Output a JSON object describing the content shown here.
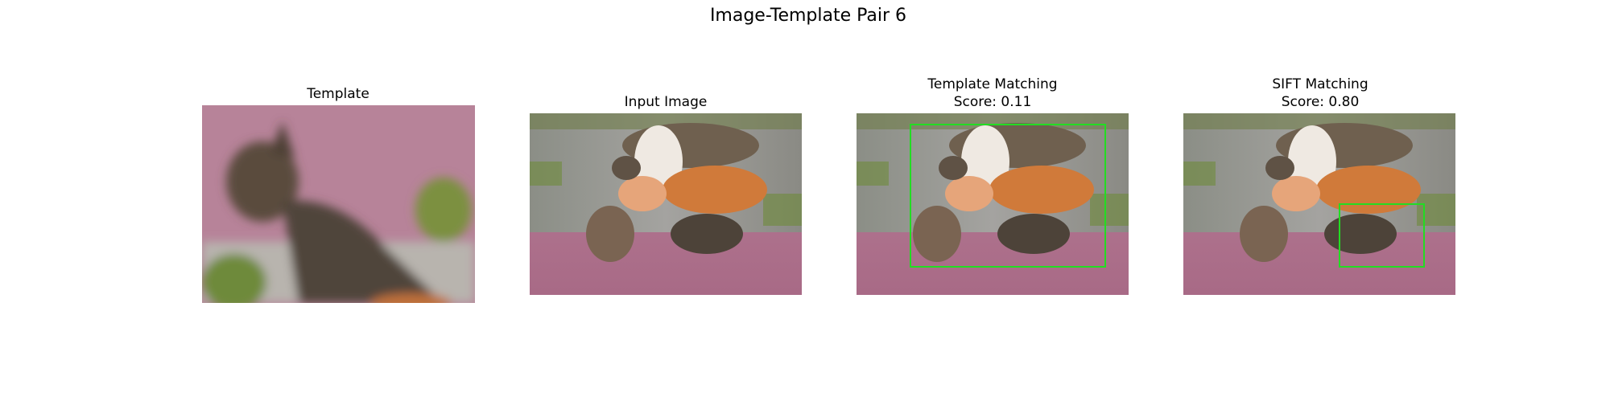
{
  "figure": {
    "title": "Image-Template Pair 6",
    "panels": [
      {
        "title_lines": [
          "Template"
        ]
      },
      {
        "title_lines": [
          "Input Image"
        ]
      },
      {
        "title_lines": [
          "Template Matching",
          "Score: 0.11"
        ]
      },
      {
        "title_lines": [
          "SIFT Matching",
          "Score: 0.80"
        ]
      }
    ]
  }
}
